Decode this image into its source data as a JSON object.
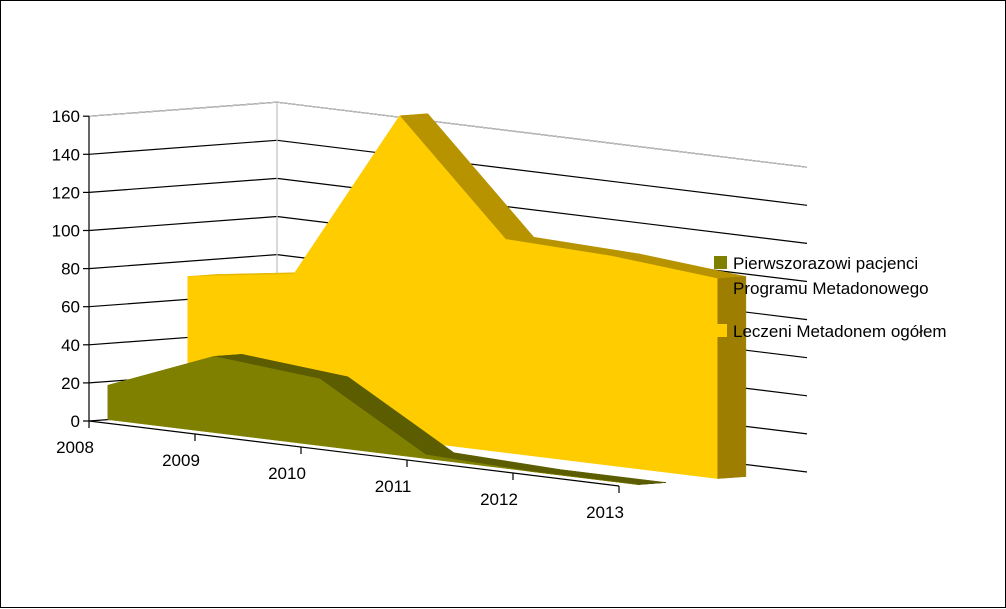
{
  "chart_data": {
    "type": "area",
    "style": "3d-area",
    "categories": [
      "2008",
      "2009",
      "2010",
      "2011",
      "2012",
      "2013"
    ],
    "series": [
      {
        "name": "Pierwszorazowi pacjenci Programu Metadonowego",
        "values": [
          18,
          40,
          35,
          2,
          0,
          0
        ],
        "color": "#808000"
      },
      {
        "name": "Leczeni Metadonem ogółem",
        "values": [
          72,
          80,
          170,
          112,
          110,
          105
        ],
        "color": "#FFCC00"
      }
    ],
    "yticks": [
      "0",
      "20",
      "40",
      "60",
      "80",
      "100",
      "120",
      "140",
      "160"
    ],
    "ylim": [
      0,
      160
    ],
    "grid": true,
    "legend_position": "right",
    "legend": [
      {
        "lines": [
          "Pierwszorazowi pacjenci",
          "Programu Metadonowego"
        ],
        "color": "#808000"
      },
      {
        "lines": [
          "Leczeni Metadonem ogółem"
        ],
        "color": "#FFCC00"
      }
    ]
  }
}
